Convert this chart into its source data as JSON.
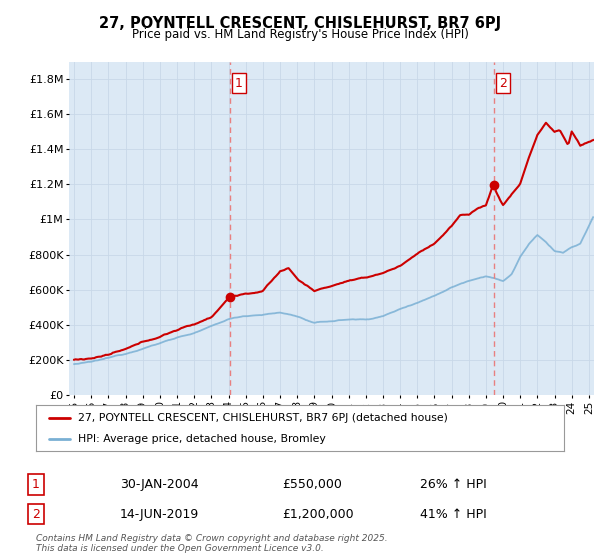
{
  "title": "27, POYNTELL CRESCENT, CHISLEHURST, BR7 6PJ",
  "subtitle": "Price paid vs. HM Land Registry's House Price Index (HPI)",
  "background_color": "#ffffff",
  "plot_bg_color": "#dce9f5",
  "grid_color": "#c8d8e8",
  "red_line_color": "#cc0000",
  "blue_line_color": "#7ab0d4",
  "dashed_line_color": "#e88080",
  "marker1_x": 2004.08,
  "marker2_x": 2019.45,
  "marker1_label": "1",
  "marker2_label": "2",
  "marker1_date": "30-JAN-2004",
  "marker1_price": "£550,000",
  "marker1_hpi": "26% ↑ HPI",
  "marker2_date": "14-JUN-2019",
  "marker2_price": "£1,200,000",
  "marker2_hpi": "41% ↑ HPI",
  "legend_line1": "27, POYNTELL CRESCENT, CHISLEHURST, BR7 6PJ (detached house)",
  "legend_line2": "HPI: Average price, detached house, Bromley",
  "footer": "Contains HM Land Registry data © Crown copyright and database right 2025.\nThis data is licensed under the Open Government Licence v3.0.",
  "ylim": [
    0,
    1900000
  ],
  "xlim_start": 1994.7,
  "xlim_end": 2025.3,
  "yticks": [
    0,
    200000,
    400000,
    600000,
    800000,
    1000000,
    1200000,
    1400000,
    1600000,
    1800000
  ],
  "ylabels": [
    "£0",
    "£200K",
    "£400K",
    "£600K",
    "£800K",
    "£1M",
    "£1.2M",
    "£1.4M",
    "£1.6M",
    "£1.8M"
  ]
}
